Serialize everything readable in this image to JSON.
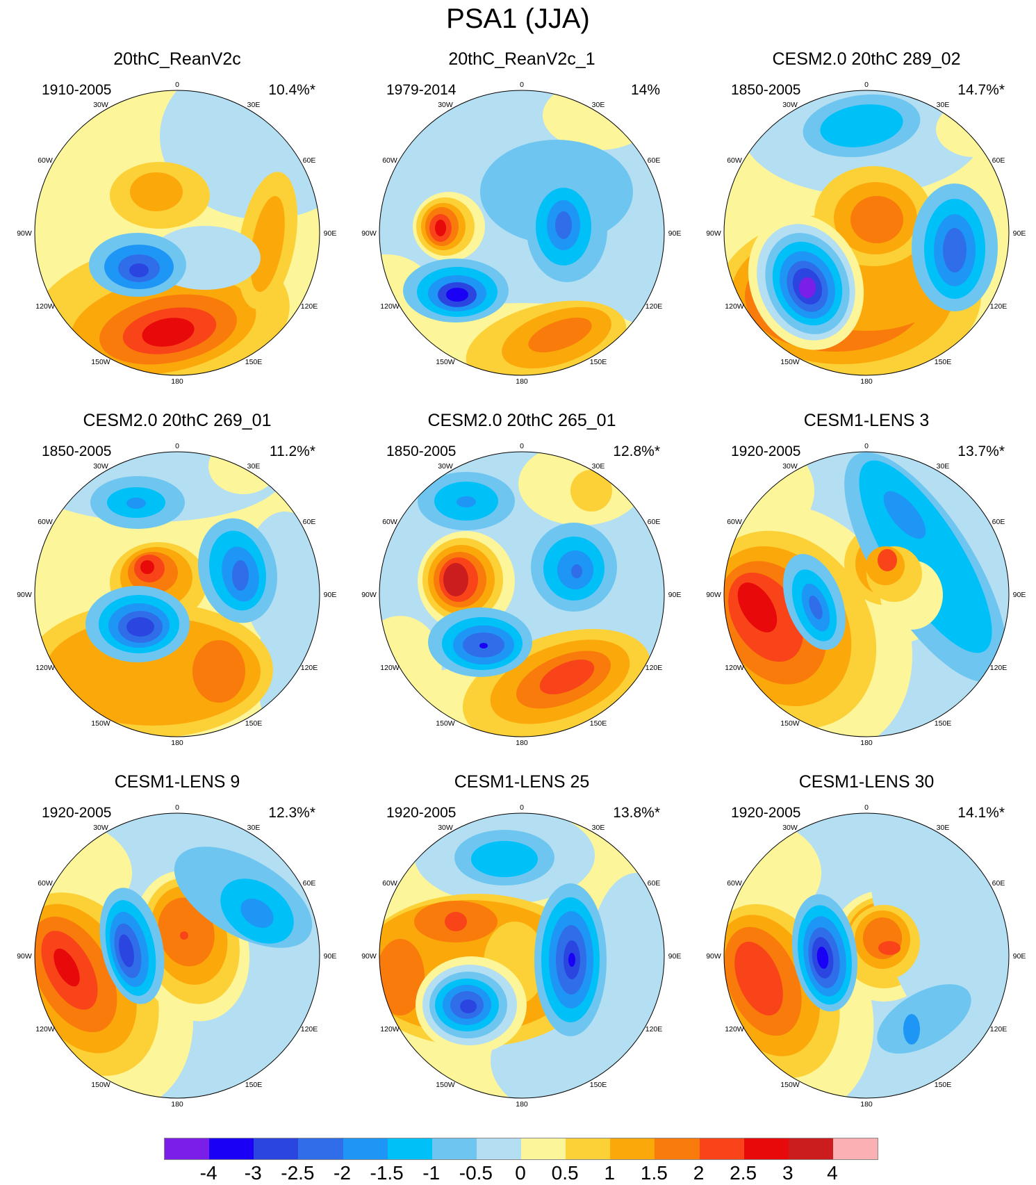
{
  "title": "PSA1 (JJA)",
  "longitude_labels": [
    "0",
    "30E",
    "60E",
    "90E",
    "120E",
    "150E",
    "180",
    "150W",
    "120W",
    "90W",
    "60W",
    "30W"
  ],
  "panels": [
    {
      "title": "20thC_ReanV2c",
      "period": "1910-2005",
      "variance": "10.4%*"
    },
    {
      "title": "20thC_ReanV2c_1",
      "period": "1979-2014",
      "variance": "14%"
    },
    {
      "title": "CESM2.0 20thC 289_02",
      "period": "1850-2005",
      "variance": "14.7%*"
    },
    {
      "title": "CESM2.0 20thC 269_01",
      "period": "1850-2005",
      "variance": "11.2%*"
    },
    {
      "title": "CESM2.0 20thC 265_01",
      "period": "1850-2005",
      "variance": "12.8%*"
    },
    {
      "title": "CESM1-LENS 3",
      "period": "1920-2005",
      "variance": "13.7%*"
    },
    {
      "title": "CESM1-LENS 9",
      "period": "1920-2005",
      "variance": "12.3%*"
    },
    {
      "title": "CESM1-LENS 25",
      "period": "1920-2005",
      "variance": "13.8%*"
    },
    {
      "title": "CESM1-LENS 30",
      "period": "1920-2005",
      "variance": "14.1%*"
    }
  ],
  "colorbar": {
    "colors": [
      "#7b1fe8",
      "#1a00f5",
      "#2b45e0",
      "#2f6ee8",
      "#1e96f5",
      "#00c0f8",
      "#6ec6f0",
      "#b4def2",
      "#fcf59a",
      "#fcd137",
      "#fba80a",
      "#f87b0b",
      "#f9441a",
      "#e80a0a",
      "#cb1c1e",
      "#fbb1b4"
    ],
    "labels": [
      "-4",
      "-3",
      "-2.5",
      "-2",
      "-1.5",
      "-1",
      "-0.5",
      "0",
      "0.5",
      "1",
      "1.5",
      "2",
      "2.5",
      "3",
      "4"
    ]
  }
}
